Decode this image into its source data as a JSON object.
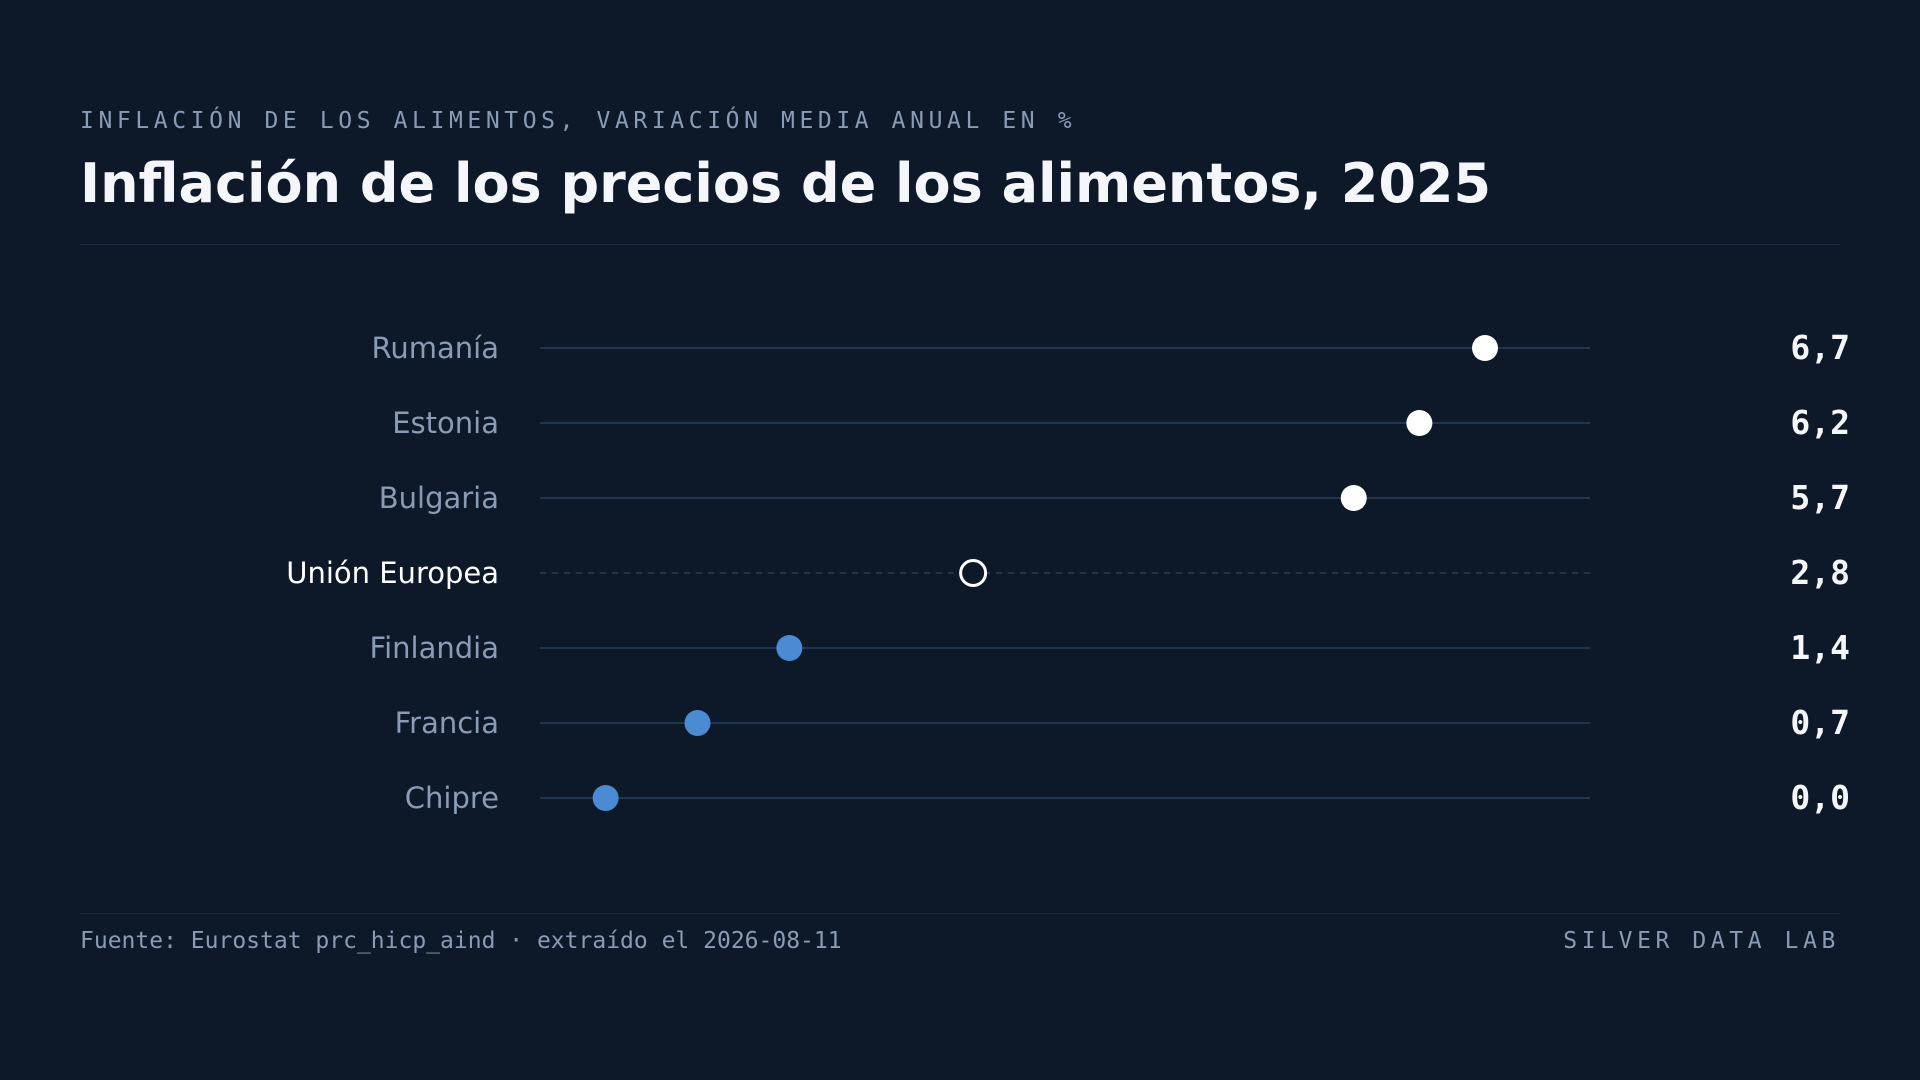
{
  "header": {
    "kicker": "INFLACIÓN DE LOS ALIMENTOS, VARIACIÓN MEDIA ANUAL EN %",
    "title": "Inflación de los precios de los alimentos, 2025"
  },
  "footer": {
    "source": "Fuente: Eurostat prc_hicp_aind · extraído el 2026-08-11",
    "brand": "SILVER DATA LAB"
  },
  "colors": {
    "background": "#0d1929",
    "high": "#ffffff",
    "low": "#4a8bd4",
    "track": "#1f3550",
    "label": "#8a9bb5",
    "highlight_label": "#ffffff",
    "value": "#f4f6fa"
  },
  "chart_data": {
    "type": "scatter",
    "subtype": "dot-plot",
    "xlim": [
      -0.5,
      7.5
    ],
    "grid": false,
    "rows": [
      {
        "category": "Rumanía",
        "value": 6.7,
        "value_label": "6,7",
        "tier": "high"
      },
      {
        "category": "Estonia",
        "value": 6.2,
        "value_label": "6,2",
        "tier": "high"
      },
      {
        "category": "Bulgaria",
        "value": 5.7,
        "value_label": "5,7",
        "tier": "high"
      },
      {
        "category": "Unión Europea",
        "value": 2.8,
        "value_label": "2,8",
        "tier": "reference"
      },
      {
        "category": "Finlandia",
        "value": 1.4,
        "value_label": "1,4",
        "tier": "low"
      },
      {
        "category": "Francia",
        "value": 0.7,
        "value_label": "0,7",
        "tier": "low"
      },
      {
        "category": "Chipre",
        "value": 0.0,
        "value_label": "0,0",
        "tier": "low"
      }
    ]
  }
}
